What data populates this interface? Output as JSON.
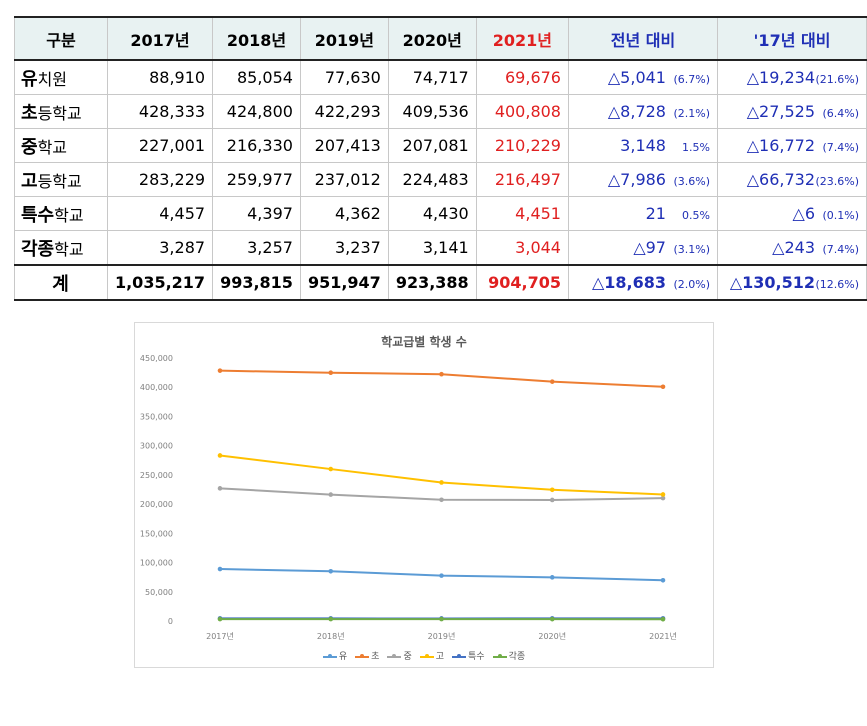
{
  "table": {
    "headers": [
      "구분",
      "2017년",
      "2018년",
      "2019년",
      "2020년",
      "2021년",
      "전년 대비",
      "'17년 대비"
    ],
    "rows": [
      {
        "bold": "유",
        "rest": "치원",
        "v": [
          "88,910",
          "85,054",
          "77,630",
          "74,717",
          "69,676"
        ],
        "prev": "△5,041",
        "prev_pct": "(6.7%)",
        "base": "△19,234",
        "base_pct": "(21.6%)"
      },
      {
        "bold": "초",
        "rest": "등학교",
        "v": [
          "428,333",
          "424,800",
          "422,293",
          "409,536",
          "400,808"
        ],
        "prev": "△8,728",
        "prev_pct": "(2.1%)",
        "base": "△27,525",
        "base_pct": "(6.4%)"
      },
      {
        "bold": "중",
        "rest": "학교",
        "v": [
          "227,001",
          "216,330",
          "207,413",
          "207,081",
          "210,229"
        ],
        "prev": "3,148",
        "prev_pct": "1.5%",
        "base": "△16,772",
        "base_pct": "(7.4%)"
      },
      {
        "bold": "고",
        "rest": "등학교",
        "v": [
          "283,229",
          "259,977",
          "237,012",
          "224,483",
          "216,497"
        ],
        "prev": "△7,986",
        "prev_pct": "(3.6%)",
        "base": "△66,732",
        "base_pct": "(23.6%)"
      },
      {
        "bold": "특수",
        "rest": "학교",
        "v": [
          "4,457",
          "4,397",
          "4,362",
          "4,430",
          "4,451"
        ],
        "prev": "21",
        "prev_pct": "0.5%",
        "base": "△6",
        "base_pct": "(0.1%)"
      },
      {
        "bold": "각종",
        "rest": "학교",
        "v": [
          "3,287",
          "3,257",
          "3,237",
          "3,141",
          "3,044"
        ],
        "prev": "△97",
        "prev_pct": "(3.1%)",
        "base": "△243",
        "base_pct": "(7.4%)"
      }
    ],
    "total": {
      "label": "계",
      "v": [
        "1,035,217",
        "993,815",
        "951,947",
        "923,388",
        "904,705"
      ],
      "prev": "△18,683",
      "prev_pct": "(2.0%)",
      "base": "△130,512",
      "base_pct": "(12.6%)"
    }
  },
  "chart_data": {
    "type": "line",
    "title": "학교급별 학생 수",
    "categories": [
      "2017년",
      "2018년",
      "2019년",
      "2020년",
      "2021년"
    ],
    "series": [
      {
        "name": "유",
        "color": "#5b9bd5",
        "values": [
          88910,
          85054,
          77630,
          74717,
          69676
        ]
      },
      {
        "name": "초",
        "color": "#ed7d31",
        "values": [
          428333,
          424800,
          422293,
          409536,
          400808
        ]
      },
      {
        "name": "중",
        "color": "#a5a5a5",
        "values": [
          227001,
          216330,
          207413,
          207081,
          210229
        ]
      },
      {
        "name": "고",
        "color": "#ffc000",
        "values": [
          283229,
          259977,
          237012,
          224483,
          216497
        ]
      },
      {
        "name": "특수",
        "color": "#4472c4",
        "values": [
          4457,
          4397,
          4362,
          4430,
          4451
        ]
      },
      {
        "name": "각종",
        "color": "#70ad47",
        "values": [
          3287,
          3257,
          3237,
          3141,
          3044
        ]
      }
    ],
    "ylim": [
      0,
      450000
    ],
    "yticks": [
      "0",
      "50,000",
      "100,000",
      "150,000",
      "200,000",
      "250,000",
      "300,000",
      "350,000",
      "400,000",
      "450,000"
    ],
    "grid": false,
    "legend": "bottom"
  }
}
